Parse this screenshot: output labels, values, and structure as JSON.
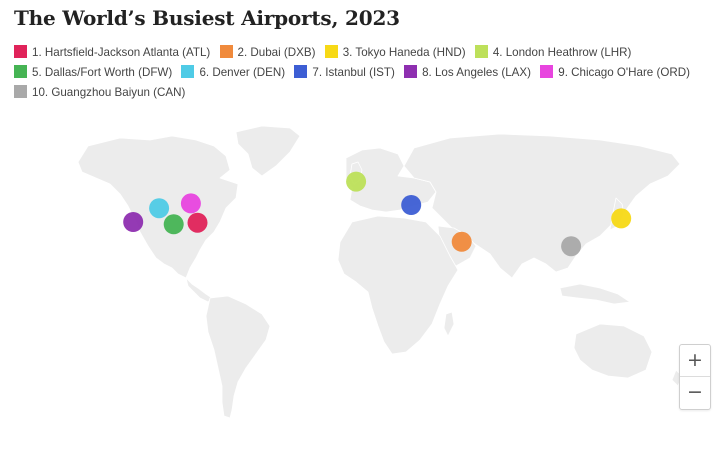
{
  "title": "The World’s Busiest Airports, 2023",
  "legend": [
    {
      "label": "1. Hartsfield-Jackson Atlanta (ATL)",
      "color": "#e0235a"
    },
    {
      "label": "2. Dubai (DXB)",
      "color": "#f08a3c"
    },
    {
      "label": "3. Tokyo Haneda (HND)",
      "color": "#f7d916"
    },
    {
      "label": "4. London Heathrow (LHR)",
      "color": "#bde05a"
    },
    {
      "label": "5. Dallas/Fort Worth (DFW)",
      "color": "#46b454"
    },
    {
      "label": "6. Denver (DEN)",
      "color": "#4fcbe6"
    },
    {
      "label": "7. Istanbul (IST)",
      "color": "#3d5ed4"
    },
    {
      "label": "8. Los Angeles (LAX)",
      "color": "#8e2fb0"
    },
    {
      "label": "9. Chicago O'Hare (ORD)",
      "color": "#e845df"
    },
    {
      "label": "10. Guangzhou Baiyun (CAN)",
      "color": "#a9a9a9"
    }
  ],
  "airports": [
    {
      "code": "ATL",
      "lat": 33.6,
      "lon": -84.4,
      "color": "#e0235a"
    },
    {
      "code": "DXB",
      "lat": 25.3,
      "lon": 55.4,
      "color": "#f08a3c"
    },
    {
      "code": "HND",
      "lat": 35.5,
      "lon": 139.8,
      "color": "#f7d916"
    },
    {
      "code": "LHR",
      "lat": 51.5,
      "lon": -0.5,
      "color": "#bde05a"
    },
    {
      "code": "DFW",
      "lat": 32.9,
      "lon": -97.0,
      "color": "#46b454"
    },
    {
      "code": "DEN",
      "lat": 39.9,
      "lon": -104.7,
      "color": "#4fcbe6"
    },
    {
      "code": "IST",
      "lat": 41.3,
      "lon": 28.7,
      "color": "#3d5ed4"
    },
    {
      "code": "LAX",
      "lat": 33.9,
      "lon": -118.4,
      "color": "#8e2fb0"
    },
    {
      "code": "ORD",
      "lat": 41.98,
      "lon": -87.9,
      "color": "#e845df"
    },
    {
      "code": "CAN",
      "lat": 23.4,
      "lon": 113.3,
      "color": "#a9a9a9"
    }
  ],
  "zoom": {
    "in_label": "+",
    "out_label": "−"
  },
  "colors": {
    "land": "#ececec",
    "border": "#ffffff"
  }
}
